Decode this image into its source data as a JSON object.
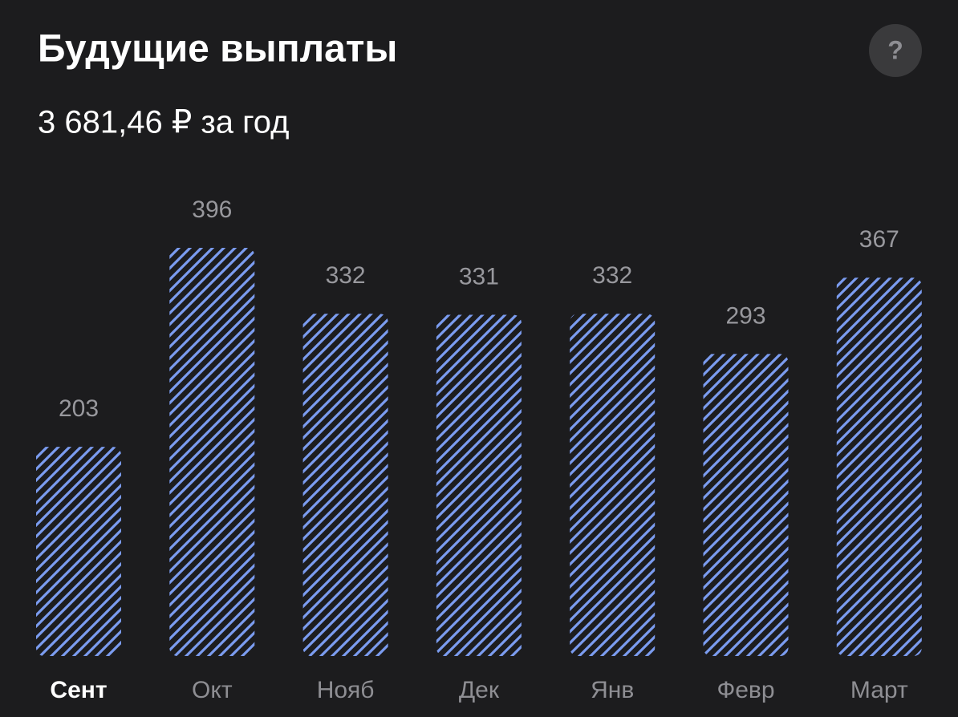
{
  "header": {
    "help": "?"
  },
  "chart_data": {
    "type": "bar",
    "title": "Будущие выплаты",
    "subtitle": "3 681,46 ₽ за год",
    "categories": [
      "Сент",
      "Окт",
      "Нояб",
      "Дек",
      "Янв",
      "Февр",
      "Март"
    ],
    "values": [
      203,
      396,
      332,
      331,
      332,
      293,
      367
    ],
    "color": "#7b9cf0",
    "highlight": "Сент"
  }
}
